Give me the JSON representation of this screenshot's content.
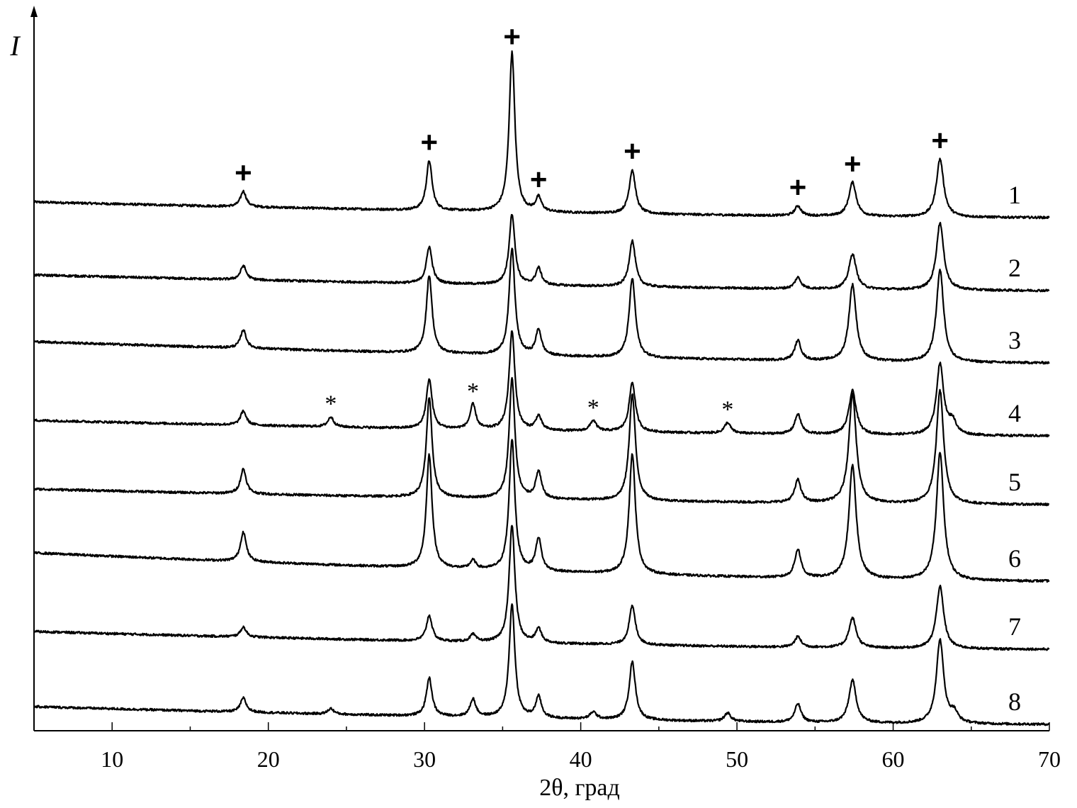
{
  "chart_data": {
    "type": "line",
    "title": "",
    "xlabel": "2θ, град",
    "ylabel": "I",
    "xlim": [
      5,
      70
    ],
    "x_ticks": [
      10,
      20,
      30,
      40,
      50,
      60,
      70
    ],
    "grid": false,
    "legend": "none",
    "line_color": "#000000",
    "series": [
      {
        "name": "1",
        "baseline_start": 22,
        "baseline_end": 0,
        "peaks": [
          [
            18.4,
            22
          ],
          [
            30.3,
            70
          ],
          [
            35.6,
            225
          ],
          [
            37.3,
            20
          ],
          [
            43.3,
            62
          ],
          [
            53.9,
            14
          ],
          [
            57.4,
            48
          ],
          [
            63.0,
            82
          ]
        ]
      },
      {
        "name": "2",
        "baseline_start": 22,
        "baseline_end": 0,
        "peaks": [
          [
            18.4,
            20
          ],
          [
            30.3,
            52
          ],
          [
            35.6,
            100
          ],
          [
            37.3,
            24
          ],
          [
            43.3,
            65
          ],
          [
            53.9,
            16
          ],
          [
            57.4,
            50
          ],
          [
            63.0,
            95
          ]
        ]
      },
      {
        "name": "3",
        "baseline_start": 30,
        "baseline_end": 0,
        "peaks": [
          [
            18.4,
            26
          ],
          [
            30.3,
            110
          ],
          [
            35.6,
            150
          ],
          [
            37.3,
            36
          ],
          [
            43.3,
            112
          ],
          [
            53.9,
            28
          ],
          [
            57.4,
            108
          ],
          [
            63.0,
            130
          ]
        ]
      },
      {
        "name": "4",
        "baseline_start": 22,
        "baseline_end": 0,
        "peaks": [
          [
            18.4,
            20
          ],
          [
            24.0,
            14
          ],
          [
            30.3,
            70
          ],
          [
            33.1,
            35
          ],
          [
            35.6,
            140
          ],
          [
            37.3,
            20
          ],
          [
            40.8,
            15
          ],
          [
            43.3,
            70
          ],
          [
            49.4,
            15
          ],
          [
            53.9,
            28
          ],
          [
            57.4,
            62
          ],
          [
            63.0,
            100
          ],
          [
            63.8,
            18
          ]
        ]
      },
      {
        "name": "5",
        "baseline_start": 22,
        "baseline_end": 0,
        "peaks": [
          [
            18.4,
            35
          ],
          [
            30.3,
            140
          ],
          [
            35.6,
            170
          ],
          [
            37.3,
            38
          ],
          [
            43.3,
            150
          ],
          [
            53.9,
            32
          ],
          [
            57.4,
            155
          ],
          [
            63.0,
            160
          ]
        ]
      },
      {
        "name": "6",
        "baseline_start": 40,
        "baseline_end": 0,
        "peaks": [
          [
            18.4,
            42
          ],
          [
            30.3,
            160
          ],
          [
            33.1,
            12
          ],
          [
            35.6,
            185
          ],
          [
            37.3,
            46
          ],
          [
            43.3,
            170
          ],
          [
            53.9,
            40
          ],
          [
            57.4,
            160
          ],
          [
            63.0,
            180
          ]
        ]
      },
      {
        "name": "7",
        "baseline_start": 25,
        "baseline_end": 0,
        "peaks": [
          [
            18.4,
            14
          ],
          [
            30.3,
            36
          ],
          [
            33.1,
            10
          ],
          [
            35.6,
            166
          ],
          [
            37.3,
            20
          ],
          [
            43.3,
            55
          ],
          [
            53.9,
            15
          ],
          [
            57.4,
            42
          ],
          [
            63.0,
            88
          ]
        ]
      },
      {
        "name": "8",
        "baseline_start": 25,
        "baseline_end": 0,
        "peaks": [
          [
            18.4,
            20
          ],
          [
            24.0,
            8
          ],
          [
            30.3,
            54
          ],
          [
            33.1,
            25
          ],
          [
            35.6,
            160
          ],
          [
            37.3,
            30
          ],
          [
            40.8,
            10
          ],
          [
            43.3,
            82
          ],
          [
            49.4,
            12
          ],
          [
            53.9,
            26
          ],
          [
            57.4,
            60
          ],
          [
            63.0,
            118
          ],
          [
            63.9,
            14
          ]
        ]
      }
    ],
    "annotations": {
      "plus_marks": {
        "symbol": "+",
        "series": "1",
        "x": [
          18.4,
          30.3,
          35.6,
          37.3,
          43.3,
          53.9,
          57.4,
          63.0
        ]
      },
      "star_marks": {
        "symbol": "*",
        "series": "4",
        "x": [
          24.0,
          33.1,
          40.8,
          49.4
        ]
      }
    }
  }
}
